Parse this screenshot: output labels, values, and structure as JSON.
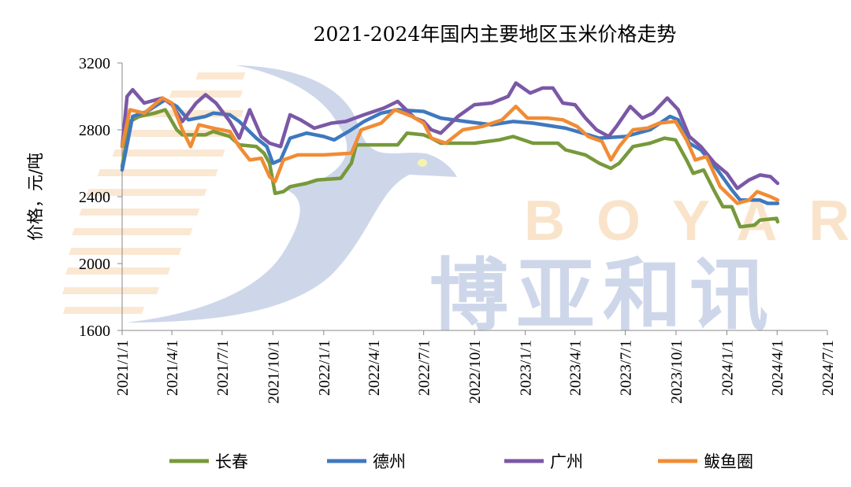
{
  "chart_data": {
    "type": "line",
    "title": "2021-2024年国内主要地区玉米价格走势",
    "xlabel": "",
    "ylabel": "价格，元/吨",
    "ylim": [
      1600,
      3200
    ],
    "yticks": [
      "1600",
      "2000",
      "2400",
      "2800",
      "3200"
    ],
    "xlim": [
      "2021-01-01",
      "2024-07-01"
    ],
    "xticks": [
      "2021/1/1",
      "2021/4/1",
      "2021/7/1",
      "2021/10/1",
      "2022/1/1",
      "2022/4/1",
      "2022/7/1",
      "2022/10/1",
      "2023/1/1",
      "2023/4/1",
      "2023/7/1",
      "2023/10/1",
      "2024/1/1",
      "2024/4/1",
      "2024/7/1"
    ],
    "grid": false,
    "legend": "bottom",
    "watermark": {
      "latin": "BOYAR",
      "chinese": "博亚和讯"
    },
    "series": [
      {
        "name": "长春",
        "color": "#77993a",
        "points": [
          [
            "2021-01-01",
            2580
          ],
          [
            "2021-01-15",
            2850
          ],
          [
            "2021-02-01",
            2880
          ],
          [
            "2021-03-01",
            2900
          ],
          [
            "2021-03-20",
            2920
          ],
          [
            "2021-04-10",
            2800
          ],
          [
            "2021-04-20",
            2770
          ],
          [
            "2021-06-01",
            2770
          ],
          [
            "2021-06-15",
            2790
          ],
          [
            "2021-07-15",
            2760
          ],
          [
            "2021-08-01",
            2710
          ],
          [
            "2021-09-01",
            2700
          ],
          [
            "2021-09-15",
            2660
          ],
          [
            "2021-09-25",
            2600
          ],
          [
            "2021-10-05",
            2420
          ],
          [
            "2021-10-20",
            2430
          ],
          [
            "2021-11-01",
            2460
          ],
          [
            "2021-12-01",
            2480
          ],
          [
            "2021-12-20",
            2500
          ],
          [
            "2022-02-01",
            2510
          ],
          [
            "2022-02-20",
            2600
          ],
          [
            "2022-03-01",
            2710
          ],
          [
            "2022-05-15",
            2710
          ],
          [
            "2022-06-01",
            2780
          ],
          [
            "2022-07-01",
            2770
          ],
          [
            "2022-07-15",
            2750
          ],
          [
            "2022-08-01",
            2720
          ],
          [
            "2022-10-01",
            2720
          ],
          [
            "2022-11-15",
            2740
          ],
          [
            "2022-12-10",
            2760
          ],
          [
            "2023-01-15",
            2720
          ],
          [
            "2023-03-01",
            2720
          ],
          [
            "2023-03-15",
            2680
          ],
          [
            "2023-04-20",
            2650
          ],
          [
            "2023-05-15",
            2600
          ],
          [
            "2023-06-05",
            2570
          ],
          [
            "2023-06-20",
            2600
          ],
          [
            "2023-07-15",
            2700
          ],
          [
            "2023-08-15",
            2720
          ],
          [
            "2023-09-10",
            2750
          ],
          [
            "2023-09-30",
            2740
          ],
          [
            "2023-10-20",
            2620
          ],
          [
            "2023-11-01",
            2540
          ],
          [
            "2023-11-20",
            2560
          ],
          [
            "2023-12-10",
            2430
          ],
          [
            "2023-12-25",
            2340
          ],
          [
            "2024-01-10",
            2340
          ],
          [
            "2024-01-25",
            2220
          ],
          [
            "2024-02-20",
            2230
          ],
          [
            "2024-03-01",
            2260
          ],
          [
            "2024-03-31",
            2270
          ],
          [
            "2024-04-02",
            2250
          ]
        ]
      },
      {
        "name": "德州",
        "color": "#3f78be",
        "points": [
          [
            "2021-01-01",
            2560
          ],
          [
            "2021-01-20",
            2880
          ],
          [
            "2021-02-15",
            2910
          ],
          [
            "2021-03-20",
            2980
          ],
          [
            "2021-04-10",
            2940
          ],
          [
            "2021-05-01",
            2860
          ],
          [
            "2021-06-01",
            2880
          ],
          [
            "2021-06-15",
            2900
          ],
          [
            "2021-07-15",
            2890
          ],
          [
            "2021-08-01",
            2850
          ],
          [
            "2021-09-01",
            2750
          ],
          [
            "2021-09-20",
            2700
          ],
          [
            "2021-10-01",
            2600
          ],
          [
            "2021-10-15",
            2620
          ],
          [
            "2021-11-01",
            2750
          ],
          [
            "2021-12-01",
            2780
          ],
          [
            "2022-01-01",
            2760
          ],
          [
            "2022-01-20",
            2740
          ],
          [
            "2022-02-15",
            2790
          ],
          [
            "2022-03-15",
            2850
          ],
          [
            "2022-04-15",
            2900
          ],
          [
            "2022-05-15",
            2920
          ],
          [
            "2022-07-01",
            2910
          ],
          [
            "2022-08-01",
            2870
          ],
          [
            "2022-09-15",
            2850
          ],
          [
            "2022-11-01",
            2830
          ],
          [
            "2022-12-10",
            2850
          ],
          [
            "2023-01-15",
            2840
          ],
          [
            "2023-03-15",
            2810
          ],
          [
            "2023-04-15",
            2780
          ],
          [
            "2023-05-15",
            2750
          ],
          [
            "2023-07-01",
            2760
          ],
          [
            "2023-08-15",
            2800
          ],
          [
            "2023-09-20",
            2880
          ],
          [
            "2023-10-05",
            2860
          ],
          [
            "2023-10-25",
            2720
          ],
          [
            "2023-11-15",
            2680
          ],
          [
            "2023-12-15",
            2560
          ],
          [
            "2024-01-10",
            2440
          ],
          [
            "2024-01-25",
            2380
          ],
          [
            "2024-03-01",
            2380
          ],
          [
            "2024-03-15",
            2360
          ],
          [
            "2024-04-02",
            2360
          ]
        ]
      },
      {
        "name": "广州",
        "color": "#7b58a6",
        "points": [
          [
            "2021-01-01",
            2700
          ],
          [
            "2021-01-10",
            3000
          ],
          [
            "2021-01-20",
            3040
          ],
          [
            "2021-02-10",
            2960
          ],
          [
            "2021-03-15",
            2990
          ],
          [
            "2021-04-01",
            2950
          ],
          [
            "2021-04-20",
            2850
          ],
          [
            "2021-05-15",
            2960
          ],
          [
            "2021-06-01",
            3010
          ],
          [
            "2021-06-20",
            2960
          ],
          [
            "2021-07-15",
            2850
          ],
          [
            "2021-08-01",
            2750
          ],
          [
            "2021-08-20",
            2920
          ],
          [
            "2021-09-10",
            2760
          ],
          [
            "2021-09-25",
            2720
          ],
          [
            "2021-10-15",
            2700
          ],
          [
            "2021-11-01",
            2890
          ],
          [
            "2021-11-20",
            2860
          ],
          [
            "2021-12-15",
            2810
          ],
          [
            "2022-01-15",
            2840
          ],
          [
            "2022-02-10",
            2850
          ],
          [
            "2022-03-15",
            2890
          ],
          [
            "2022-04-20",
            2930
          ],
          [
            "2022-05-15",
            2970
          ],
          [
            "2022-06-15",
            2870
          ],
          [
            "2022-07-01",
            2850
          ],
          [
            "2022-07-15",
            2800
          ],
          [
            "2022-08-01",
            2780
          ],
          [
            "2022-09-01",
            2880
          ],
          [
            "2022-10-01",
            2950
          ],
          [
            "2022-11-01",
            2960
          ],
          [
            "2022-12-01",
            3000
          ],
          [
            "2022-12-15",
            3080
          ],
          [
            "2023-01-10",
            3020
          ],
          [
            "2023-02-01",
            3050
          ],
          [
            "2023-02-20",
            3050
          ],
          [
            "2023-03-10",
            2960
          ],
          [
            "2023-04-01",
            2950
          ],
          [
            "2023-04-20",
            2870
          ],
          [
            "2023-05-10",
            2800
          ],
          [
            "2023-06-01",
            2760
          ],
          [
            "2023-06-15",
            2820
          ],
          [
            "2023-07-10",
            2940
          ],
          [
            "2023-08-01",
            2870
          ],
          [
            "2023-08-20",
            2900
          ],
          [
            "2023-09-15",
            2990
          ],
          [
            "2023-10-05",
            2920
          ],
          [
            "2023-10-25",
            2760
          ],
          [
            "2023-11-15",
            2700
          ],
          [
            "2023-12-10",
            2600
          ],
          [
            "2024-01-01",
            2540
          ],
          [
            "2024-01-20",
            2450
          ],
          [
            "2024-02-10",
            2500
          ],
          [
            "2024-03-01",
            2530
          ],
          [
            "2024-03-20",
            2520
          ],
          [
            "2024-04-02",
            2480
          ]
        ]
      },
      {
        "name": "鲅鱼圈",
        "color": "#f08c35",
        "points": [
          [
            "2021-01-01",
            2700
          ],
          [
            "2021-01-15",
            2920
          ],
          [
            "2021-02-10",
            2900
          ],
          [
            "2021-03-15",
            2990
          ],
          [
            "2021-04-01",
            2960
          ],
          [
            "2021-04-20",
            2800
          ],
          [
            "2021-05-05",
            2700
          ],
          [
            "2021-05-20",
            2830
          ],
          [
            "2021-06-15",
            2810
          ],
          [
            "2021-07-15",
            2790
          ],
          [
            "2021-08-01",
            2700
          ],
          [
            "2021-08-20",
            2620
          ],
          [
            "2021-09-10",
            2630
          ],
          [
            "2021-09-25",
            2520
          ],
          [
            "2021-10-05",
            2490
          ],
          [
            "2021-10-20",
            2620
          ],
          [
            "2021-11-15",
            2650
          ],
          [
            "2022-01-01",
            2650
          ],
          [
            "2022-02-20",
            2660
          ],
          [
            "2022-03-10",
            2800
          ],
          [
            "2022-04-15",
            2840
          ],
          [
            "2022-05-10",
            2920
          ],
          [
            "2022-06-10",
            2880
          ],
          [
            "2022-07-01",
            2840
          ],
          [
            "2022-07-15",
            2750
          ],
          [
            "2022-08-10",
            2720
          ],
          [
            "2022-09-10",
            2800
          ],
          [
            "2022-10-15",
            2820
          ],
          [
            "2022-11-20",
            2860
          ],
          [
            "2022-12-15",
            2940
          ],
          [
            "2023-01-05",
            2870
          ],
          [
            "2023-02-10",
            2870
          ],
          [
            "2023-03-10",
            2860
          ],
          [
            "2023-04-05",
            2820
          ],
          [
            "2023-04-25",
            2760
          ],
          [
            "2023-05-20",
            2730
          ],
          [
            "2023-06-05",
            2620
          ],
          [
            "2023-06-20",
            2700
          ],
          [
            "2023-07-15",
            2800
          ],
          [
            "2023-08-10",
            2810
          ],
          [
            "2023-09-01",
            2840
          ],
          [
            "2023-09-30",
            2850
          ],
          [
            "2023-10-20",
            2740
          ],
          [
            "2023-11-05",
            2620
          ],
          [
            "2023-11-25",
            2640
          ],
          [
            "2023-12-20",
            2460
          ],
          [
            "2024-01-20",
            2360
          ],
          [
            "2024-02-10",
            2380
          ],
          [
            "2024-02-25",
            2430
          ],
          [
            "2024-03-20",
            2400
          ],
          [
            "2024-04-02",
            2380
          ]
        ]
      }
    ]
  }
}
